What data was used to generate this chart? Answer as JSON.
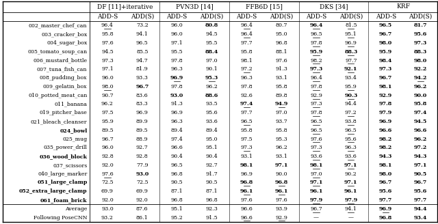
{
  "col_headers_top": [
    "DF [11]+iterative",
    "PVN3D [14]",
    "FFB6D [15]",
    "DKS [34]",
    "KRF"
  ],
  "col_headers_sub": [
    "ADD-S",
    "ADD(S)"
  ],
  "row_labels": [
    "002_master_chef_can",
    "003_cracker_box",
    "004_sugar_box",
    "005_tomato_soup_can",
    "006_mustard_bottle",
    "007_tuna_fish_can",
    "008_pudding_box",
    "009_gelatin_box",
    "010_potted_meat_can",
    "011_banana",
    "019_pitcher_base",
    "021_bleach_cleanser",
    "024_bowl",
    "025_mug",
    "035_power_drill",
    "036_wood_block",
    "037_scissors",
    "040_large_marker",
    "051_large_clamp",
    "052_extra_large_clamp",
    "061_foam_brick",
    "Average",
    "Following PoseCNN"
  ],
  "row_labels_bold": [
    false,
    false,
    false,
    false,
    false,
    false,
    false,
    false,
    false,
    false,
    false,
    false,
    true,
    false,
    false,
    true,
    false,
    false,
    true,
    true,
    true,
    false,
    false
  ],
  "data": [
    [
      96.4,
      73.2,
      96.0,
      80.8,
      96.4,
      80.7,
      96.4,
      81.5,
      96.5,
      81.7
    ],
    [
      95.8,
      94.1,
      96.0,
      94.5,
      96.4,
      95.0,
      96.5,
      95.1,
      96.7,
      95.6
    ],
    [
      97.6,
      96.5,
      97.1,
      95.5,
      97.7,
      96.8,
      97.8,
      96.9,
      98.0,
      97.3
    ],
    [
      94.5,
      85.5,
      95.5,
      88.4,
      95.8,
      88.1,
      95.9,
      88.3,
      95.9,
      88.3
    ],
    [
      97.3,
      94.7,
      97.8,
      97.0,
      98.1,
      97.6,
      98.2,
      97.7,
      98.4,
      98.0
    ],
    [
      97.1,
      81.9,
      96.3,
      90.1,
      97.2,
      91.3,
      97.3,
      92.1,
      97.3,
      92.2
    ],
    [
      96.0,
      93.3,
      96.9,
      95.3,
      96.3,
      93.1,
      96.4,
      93.4,
      96.7,
      94.2
    ],
    [
      98.0,
      96.7,
      97.8,
      96.2,
      97.8,
      95.8,
      97.8,
      95.9,
      98.1,
      96.2
    ],
    [
      90.7,
      83.6,
      93.0,
      88.6,
      92.6,
      89.8,
      92.9,
      90.3,
      92.9,
      90.0
    ],
    [
      96.2,
      83.3,
      91.3,
      93.5,
      97.4,
      94.9,
      97.3,
      94.4,
      97.8,
      95.8
    ],
    [
      97.5,
      96.9,
      96.9,
      95.6,
      97.7,
      97.0,
      97.8,
      97.2,
      97.9,
      97.4
    ],
    [
      95.9,
      89.9,
      96.3,
      93.6,
      96.5,
      93.7,
      96.5,
      93.8,
      96.9,
      94.5
    ],
    [
      89.5,
      89.5,
      89.4,
      89.4,
      95.8,
      95.8,
      96.5,
      96.5,
      96.6,
      96.6
    ],
    [
      96.7,
      88.9,
      97.4,
      95.0,
      97.5,
      95.3,
      97.6,
      95.6,
      98.2,
      96.2
    ],
    [
      96.0,
      92.7,
      96.6,
      95.1,
      97.3,
      96.2,
      97.3,
      96.3,
      98.2,
      97.2
    ],
    [
      92.8,
      92.8,
      90.4,
      90.4,
      93.1,
      93.1,
      93.6,
      93.6,
      94.3,
      94.3
    ],
    [
      92.0,
      77.9,
      96.5,
      92.7,
      98.1,
      97.1,
      98.1,
      97.1,
      98.1,
      97.1
    ],
    [
      97.6,
      93.0,
      96.8,
      91.7,
      96.9,
      90.0,
      97.0,
      90.2,
      98.0,
      90.5
    ],
    [
      72.5,
      72.5,
      90.5,
      90.5,
      96.8,
      96.8,
      97.1,
      97.1,
      96.7,
      96.7
    ],
    [
      69.9,
      69.9,
      87.1,
      87.1,
      96.1,
      96.1,
      96.1,
      96.1,
      95.6,
      95.6
    ],
    [
      92.0,
      92.0,
      96.8,
      96.8,
      97.6,
      97.6,
      97.9,
      97.9,
      97.7,
      97.7
    ],
    [
      93.0,
      87.6,
      95.1,
      92.3,
      96.6,
      93.9,
      96.7,
      94.1,
      96.9,
      94.4
    ],
    [
      93.2,
      86.1,
      95.2,
      91.5,
      96.6,
      92.9,
      null,
      null,
      96.8,
      93.4
    ]
  ],
  "bold_cells": [
    [
      [
        0,
        3
      ],
      [
        0,
        6
      ],
      [
        0,
        8
      ],
      [
        0,
        9
      ]
    ],
    [
      [
        1,
        8
      ],
      [
        1,
        9
      ]
    ],
    [
      [
        2,
        8
      ],
      [
        2,
        9
      ]
    ],
    [
      [
        3,
        3
      ],
      [
        3,
        6
      ],
      [
        3,
        7
      ],
      [
        3,
        8
      ],
      [
        3,
        7
      ]
    ],
    [
      [
        4,
        8
      ],
      [
        4,
        9
      ]
    ],
    [
      [
        5,
        6
      ],
      [
        5,
        7
      ],
      [
        5,
        8
      ]
    ],
    [
      [
        6,
        2
      ],
      [
        6,
        3
      ],
      [
        6,
        8
      ]
    ],
    [
      [
        7,
        1
      ],
      [
        7,
        8
      ]
    ],
    [
      [
        8,
        2
      ],
      [
        8,
        3
      ],
      [
        8,
        7
      ]
    ],
    [
      [
        9,
        4
      ],
      [
        9,
        5
      ],
      [
        9,
        8
      ],
      [
        9,
        9
      ]
    ],
    [
      [
        10,
        8
      ],
      [
        10,
        9
      ]
    ],
    [
      [
        11,
        8
      ],
      [
        11,
        9
      ]
    ],
    [
      [
        12,
        8
      ],
      [
        12,
        9
      ]
    ],
    [
      [
        13,
        8
      ],
      [
        13,
        9
      ]
    ],
    [
      [
        14,
        8
      ],
      [
        14,
        9
      ]
    ],
    [
      [
        15,
        8
      ],
      [
        15,
        9
      ]
    ],
    [
      [
        16,
        4
      ],
      [
        16,
        5
      ],
      [
        16,
        6
      ],
      [
        16,
        7
      ],
      [
        16,
        8
      ],
      [
        16,
        9
      ]
    ],
    [
      [
        17,
        1
      ],
      [
        17,
        8
      ]
    ],
    [
      [
        18,
        4
      ],
      [
        18,
        5
      ],
      [
        18,
        6
      ],
      [
        18,
        7
      ]
    ],
    [
      [
        19,
        4
      ],
      [
        19,
        5
      ],
      [
        19,
        6
      ],
      [
        19,
        7
      ]
    ],
    [
      [
        20,
        6
      ],
      [
        20,
        7
      ]
    ],
    [
      [
        21,
        8
      ],
      [
        21,
        9
      ]
    ],
    [
      [
        22,
        8
      ],
      [
        22,
        9
      ]
    ]
  ],
  "underline_cells": [
    [
      [
        0,
        0
      ],
      [
        0,
        4
      ],
      [
        0,
        6
      ],
      [
        0,
        7
      ]
    ],
    [
      [
        1,
        4
      ],
      [
        1,
        6
      ],
      [
        1,
        7
      ]
    ],
    [
      [
        2,
        6
      ],
      [
        2,
        7
      ]
    ],
    [
      [
        3,
        6
      ],
      [
        3,
        7
      ]
    ],
    [
      [
        4,
        6
      ],
      [
        4,
        7
      ]
    ],
    [
      [
        5,
        4
      ],
      [
        5,
        6
      ],
      [
        5,
        7
      ]
    ],
    [
      [
        6,
        2
      ],
      [
        6,
        3
      ],
      [
        6,
        6
      ],
      [
        6,
        9
      ]
    ],
    [
      [
        7,
        0
      ],
      [
        7,
        6
      ],
      [
        7,
        7
      ]
    ],
    [
      [
        8,
        6
      ],
      [
        8,
        7
      ]
    ],
    [
      [
        9,
        4
      ],
      [
        9,
        5
      ],
      [
        9,
        6
      ]
    ],
    [
      [
        10,
        6
      ],
      [
        10,
        7
      ]
    ],
    [
      [
        11,
        4
      ],
      [
        11,
        6
      ],
      [
        11,
        7
      ]
    ],
    [
      [
        12,
        6
      ],
      [
        12,
        7
      ]
    ],
    [
      [
        13,
        6
      ],
      [
        13,
        7
      ]
    ],
    [
      [
        14,
        4
      ],
      [
        14,
        6
      ],
      [
        14,
        7
      ]
    ],
    [
      [
        15,
        6
      ],
      [
        15,
        7
      ]
    ],
    [
      [
        16,
        6
      ],
      [
        16,
        7
      ]
    ],
    [
      [
        17,
        0
      ],
      [
        17,
        6
      ]
    ],
    [
      [
        18,
        4
      ],
      [
        18,
        5
      ],
      [
        18,
        6
      ],
      [
        18,
        7
      ]
    ],
    [
      [
        19,
        4
      ],
      [
        19,
        5
      ]
    ],
    [
      [
        20,
        6
      ],
      [
        20,
        7
      ]
    ],
    [
      [
        21,
        6
      ],
      [
        21,
        7
      ],
      [
        21,
        8
      ]
    ],
    [
      [
        22,
        4
      ],
      [
        22,
        5
      ]
    ]
  ],
  "background_color": "#ffffff",
  "text_color": "#000000",
  "header_bg": "#f0f0f0"
}
